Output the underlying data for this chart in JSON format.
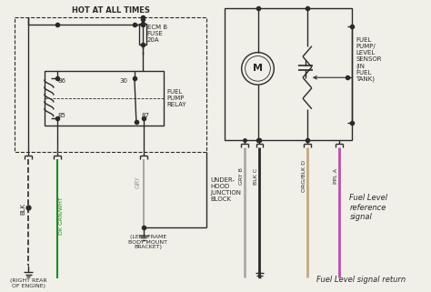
{
  "bg_color": "#f0efe8",
  "line_color": "#2a2a2a",
  "wire_colors": {
    "blk": "#2a2a2a",
    "dk_grn_wht": "#228B22",
    "gry": "#999999",
    "gry_b": "#aaaaaa",
    "blk_c": "#2a2a2a",
    "org_blk_d": "#c8a878",
    "ppl_a": "#cc44bb"
  },
  "labels": {
    "hot_at_all_times": "HOT AT ALL TIMES",
    "ecm_b_fuse": "ECM B\nFUSE\n20A",
    "fuel_pump_relay": "FUEL\nPUMP\nRELAY",
    "underhood": "UNDER-\nHOOD\nJUNCTION\nBLOCK",
    "blk": "BLK",
    "dk_grn_wht": "DK GRN/WHT",
    "gry": "GRY",
    "right_rear": "(RIGHT REAR\nOF ENGINE)",
    "left_frame": "(LEFT FRAME\nBODY MOUNT\nBRACKET)",
    "fuel_pump_sensor": "FUEL\nPUMP/\nLEVEL\nSENSOR\n(IN\nFUEL\nTANK)",
    "gry_b_lbl": "GRY B",
    "blk_c_lbl": "BLK C",
    "org_blk_d_lbl": "ORG/BLK D",
    "ppl_a_lbl": "PPL A",
    "fuel_level_ref": "Fuel Level\nreference\nsignal",
    "fuel_level_ret": "Fuel Level signal return",
    "n86": "86",
    "n85": "85",
    "n30": "30",
    "n87": "87"
  }
}
